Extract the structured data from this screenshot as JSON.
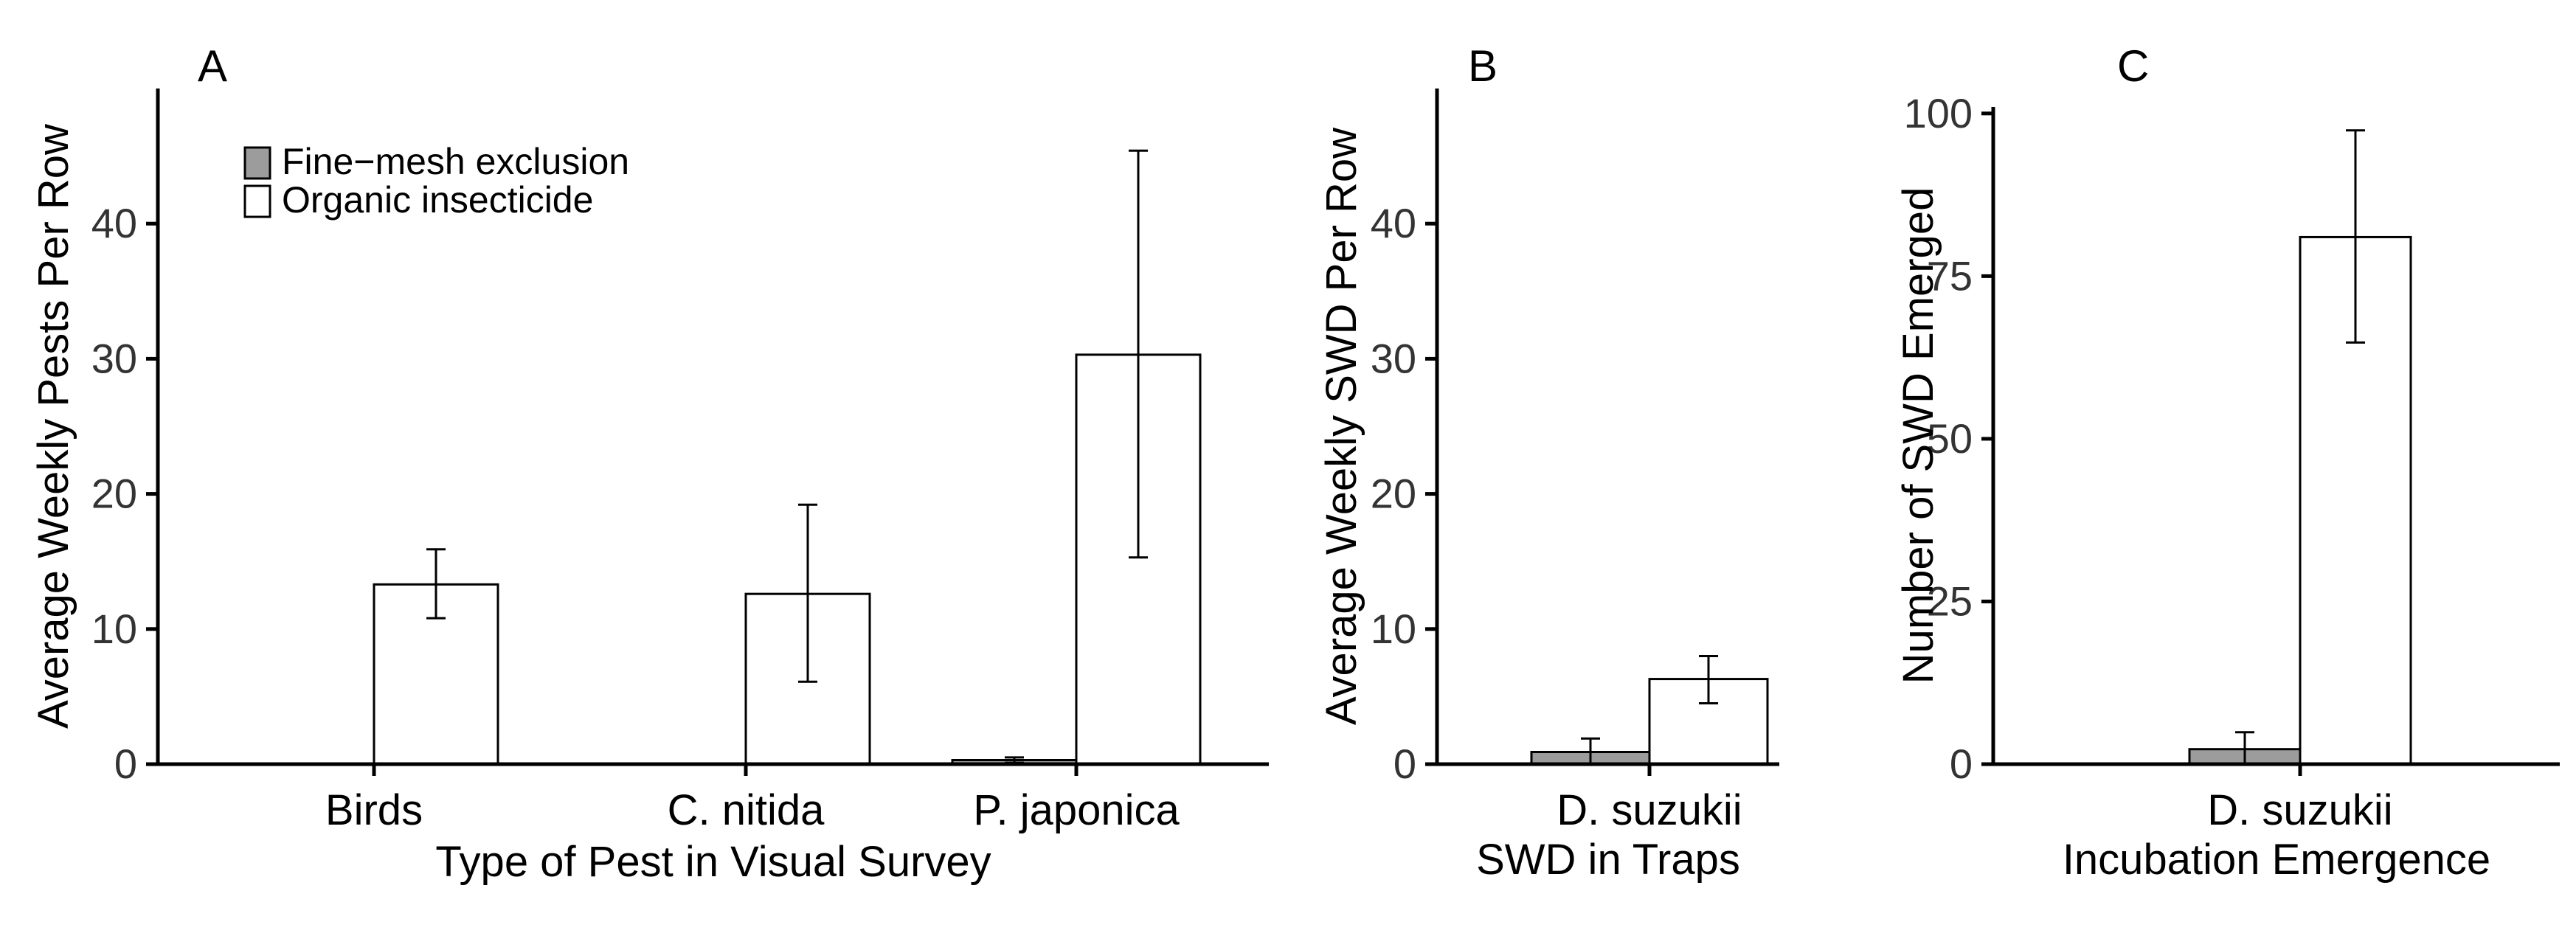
{
  "colors": {
    "fine_mesh": "#9c9c9c",
    "organic": "#ffffff",
    "axis": "#000000",
    "tick_text": "#333333"
  },
  "chart_data": [
    {
      "panel": "A",
      "type": "bar",
      "xlabel": "Type of Pest in Visual Survey",
      "ylabel": "Average Weekly Pests Per Row",
      "ylim": [
        0,
        50
      ],
      "yticks": [
        0,
        10,
        20,
        30,
        40
      ],
      "categories": [
        "Birds",
        "C. nitida",
        "P. japonica"
      ],
      "legend_position": "top-left",
      "series": [
        {
          "name": "Fine−mesh exclusion",
          "color": "#9c9c9c",
          "values": [
            0,
            0,
            0.3
          ],
          "err_low": [
            0,
            0,
            0.1
          ],
          "err_high": [
            0,
            0,
            0.5
          ]
        },
        {
          "name": "Organic insecticide",
          "color": "#ffffff",
          "values": [
            13.3,
            12.6,
            30.3
          ],
          "err_low": [
            10.8,
            6.1,
            15.3
          ],
          "err_high": [
            15.9,
            19.2,
            45.4
          ]
        }
      ]
    },
    {
      "panel": "B",
      "type": "bar",
      "xlabel": "SWD in Traps",
      "ylabel": "Average Weekly SWD Per Row",
      "ylim": [
        0,
        50
      ],
      "yticks": [
        0,
        10,
        20,
        30,
        40
      ],
      "categories": [
        "D. suzukii"
      ],
      "series": [
        {
          "name": "Fine−mesh exclusion",
          "color": "#9c9c9c",
          "values": [
            0.9
          ],
          "err_low": [
            0
          ],
          "err_high": [
            1.9
          ]
        },
        {
          "name": "Organic insecticide",
          "color": "#ffffff",
          "values": [
            6.3
          ],
          "err_low": [
            4.5
          ],
          "err_high": [
            8.0
          ]
        }
      ]
    },
    {
      "panel": "C",
      "type": "bar",
      "xlabel": "Incubation Emergence",
      "ylabel": "Number of SWD Emerged",
      "ylim": [
        0,
        101
      ],
      "yticks": [
        0,
        25,
        50,
        75,
        100
      ],
      "categories": [
        "D. suzukii"
      ],
      "series": [
        {
          "name": "Fine−mesh exclusion",
          "color": "#9c9c9c",
          "values": [
            2.3
          ],
          "err_low": [
            0
          ],
          "err_high": [
            4.9
          ]
        },
        {
          "name": "Organic insecticide",
          "color": "#ffffff",
          "values": [
            81
          ],
          "err_low": [
            64.8
          ],
          "err_high": [
            97.4
          ]
        }
      ]
    }
  ]
}
